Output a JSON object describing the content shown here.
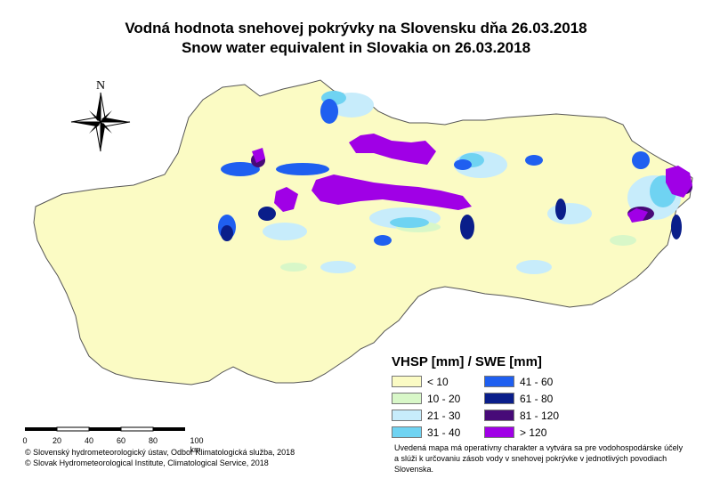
{
  "title_sk": "Vodná hodnota snehovej pokrývky na Slovensku dňa 26.03.2018",
  "title_en": "Snow water equivalent in Slovakia on 26.03.2018",
  "north_label": "N",
  "legend": {
    "title": "VHSP [mm] / SWE [mm]",
    "classes": [
      {
        "label": "< 10",
        "color": "#fbfbc4"
      },
      {
        "label": "10 - 20",
        "color": "#d8f7c8"
      },
      {
        "label": "21 - 30",
        "color": "#c7ecfb"
      },
      {
        "label": "31 - 40",
        "color": "#6fd3f2"
      },
      {
        "label": "41 - 60",
        "color": "#1f5ff0"
      },
      {
        "label": "61 - 80",
        "color": "#0a1e8a"
      },
      {
        "label": "81 - 120",
        "color": "#470a78"
      },
      {
        "label": "> 120",
        "color": "#a000e6"
      }
    ]
  },
  "scale_bar": {
    "ticks": [
      "0",
      "20",
      "40",
      "60",
      "80",
      "100 km"
    ]
  },
  "credits": [
    "© Slovenský hydrometeorologický ústav, Odbor Klimatologická služba, 2018",
    "© Slovak Hydrometeorological Institute, Climatological Service, 2018"
  ],
  "note": "Uvedená mapa má operatívny charakter a vytvára sa pre vodohospodárske účely a slúži k určovaniu zásob vody v snehovej pokrývke v jednotlivých povodiach Slovenska."
}
